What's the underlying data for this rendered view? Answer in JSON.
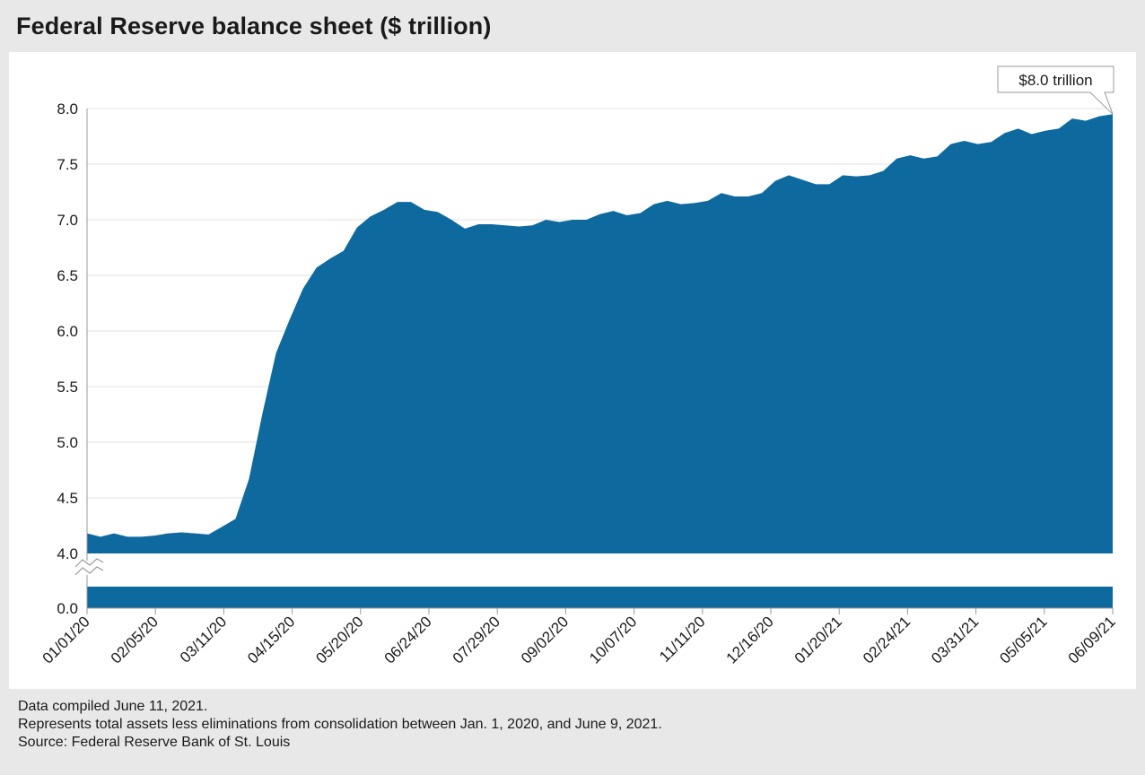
{
  "title": "Federal Reserve balance sheet ($ trillion)",
  "notes": {
    "compiled": "Data compiled June 11, 2021.",
    "description": "Represents total assets less eliminations from consolidation between Jan. 1, 2020, and June 9, 2021.",
    "source": "Source: Federal Reserve Bank of St. Louis"
  },
  "colors": {
    "area": "#0e6a9e",
    "grid": "#e2e2e2",
    "axis": "#9a9a9a",
    "panel": "#ffffff",
    "page": "#e8e8e8"
  },
  "chart_data": {
    "type": "area",
    "title": "Federal Reserve balance sheet ($ trillion)",
    "xlabel": "",
    "ylabel": "",
    "axis_break": true,
    "ylim": [
      4.0,
      8.0
    ],
    "y_ticks": [
      "0.0",
      "4.0",
      "4.5",
      "5.0",
      "5.5",
      "6.0",
      "6.5",
      "7.0",
      "7.5",
      "8.0"
    ],
    "x_ticks": [
      "01/01/20",
      "02/05/20",
      "03/11/20",
      "04/15/20",
      "05/20/20",
      "06/24/20",
      "07/29/20",
      "09/02/20",
      "10/07/20",
      "11/11/20",
      "12/16/20",
      "01/20/21",
      "02/24/21",
      "03/31/21",
      "05/05/21",
      "06/09/21"
    ],
    "grid": true,
    "annotation": {
      "text": "$8.0 trillion",
      "target": "last"
    },
    "values": [
      4.18,
      4.15,
      4.18,
      4.15,
      4.15,
      4.16,
      4.18,
      4.19,
      4.18,
      4.17,
      4.24,
      4.31,
      4.67,
      5.26,
      5.8,
      6.1,
      6.38,
      6.57,
      6.65,
      6.72,
      6.93,
      7.03,
      7.09,
      7.16,
      7.16,
      7.09,
      7.07,
      7.0,
      6.92,
      6.96,
      6.96,
      6.95,
      6.94,
      6.95,
      7.0,
      6.98,
      7.0,
      7.0,
      7.05,
      7.08,
      7.04,
      7.06,
      7.14,
      7.17,
      7.14,
      7.15,
      7.17,
      7.24,
      7.21,
      7.21,
      7.24,
      7.35,
      7.4,
      7.36,
      7.32,
      7.32,
      7.4,
      7.39,
      7.4,
      7.44,
      7.55,
      7.58,
      7.55,
      7.57,
      7.68,
      7.71,
      7.68,
      7.7,
      7.78,
      7.82,
      7.77,
      7.8,
      7.82,
      7.91,
      7.89,
      7.93,
      7.95
    ]
  }
}
